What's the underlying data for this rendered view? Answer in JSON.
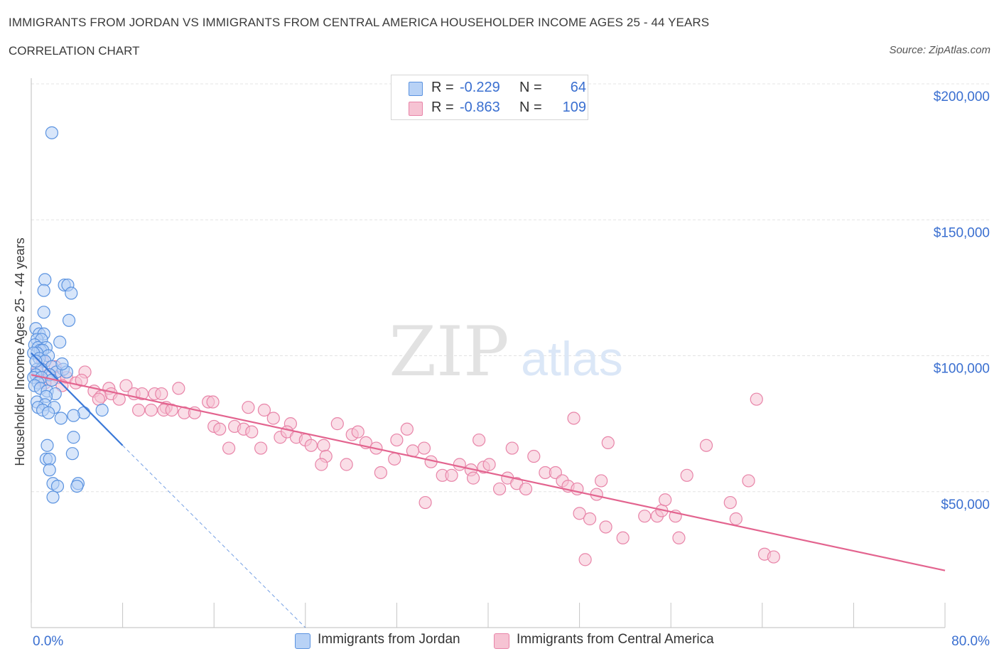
{
  "title": "IMMIGRANTS FROM JORDAN VS IMMIGRANTS FROM CENTRAL AMERICA HOUSEHOLDER INCOME AGES 25 - 44 YEARS",
  "subtitle": "CORRELATION CHART",
  "source": "Source: ZipAtlas.com",
  "watermark": {
    "zip": "ZIP",
    "atlas": "atlas"
  },
  "colors": {
    "jordan": "#5b93e0",
    "jordan_fill": "#b8d2f6",
    "jordan_line": "#3a78d8",
    "central": "#e884a8",
    "central_fill": "#f6c3d3",
    "central_line": "#e3648f",
    "axis_label": "#3a6fd0",
    "grid": "#e3e3e3"
  },
  "legend": {
    "rows": [
      {
        "r_label": "R =",
        "r_value": "-0.229",
        "n_label": "N =",
        "n_value": "64"
      },
      {
        "r_label": "R =",
        "r_value": "-0.863",
        "n_label": "N =",
        "n_value": "109"
      }
    ]
  },
  "chart_data": {
    "type": "scatter",
    "title": "IMMIGRANTS FROM JORDAN VS IMMIGRANTS FROM CENTRAL AMERICA HOUSEHOLDER INCOME AGES 25 - 44 YEARS",
    "xlabel": "",
    "ylabel": "Householder Income Ages 25 - 44 years",
    "xlim": [
      0,
      80
    ],
    "ylim": [
      0,
      200000
    ],
    "x_tick_labels": [
      "0.0%",
      "80.0%"
    ],
    "y_ticks": [
      50000,
      100000,
      150000,
      200000
    ],
    "y_tick_labels": [
      "$50,000",
      "$100,000",
      "$150,000",
      "$200,000"
    ],
    "series": [
      {
        "name": "Immigrants from Jordan",
        "r": -0.229,
        "n": 64,
        "trend": {
          "x0": 0,
          "y0": 101000,
          "x1": 8,
          "y1": 67000,
          "dashed_to_x": 24,
          "dashed_to_y": 0
        },
        "points": [
          [
            1.8,
            182000
          ],
          [
            2.9,
            126000
          ],
          [
            3.2,
            126000
          ],
          [
            1.2,
            128000
          ],
          [
            3.5,
            123000
          ],
          [
            1.1,
            124000
          ],
          [
            1.1,
            116000
          ],
          [
            3.3,
            113000
          ],
          [
            0.4,
            110000
          ],
          [
            0.7,
            108000
          ],
          [
            1.1,
            108000
          ],
          [
            0.5,
            106000
          ],
          [
            0.9,
            106000
          ],
          [
            2.5,
            105000
          ],
          [
            0.3,
            104000
          ],
          [
            0.6,
            103000
          ],
          [
            1.3,
            103000
          ],
          [
            0.8,
            102000
          ],
          [
            1.0,
            102000
          ],
          [
            0.5,
            101000
          ],
          [
            1.5,
            100000
          ],
          [
            0.2,
            101000
          ],
          [
            0.7,
            99000
          ],
          [
            1.2,
            98000
          ],
          [
            1.8,
            96000
          ],
          [
            2.8,
            95000
          ],
          [
            0.5,
            95000
          ],
          [
            0.9,
            95000
          ],
          [
            2.2,
            94000
          ],
          [
            3.1,
            94000
          ],
          [
            1.6,
            93000
          ],
          [
            0.4,
            93000
          ],
          [
            0.2,
            92000
          ],
          [
            0.9,
            92000
          ],
          [
            1.8,
            91000
          ],
          [
            0.6,
            90000
          ],
          [
            0.3,
            89000
          ],
          [
            0.8,
            88000
          ],
          [
            1.4,
            87000
          ],
          [
            2.1,
            86000
          ],
          [
            1.3,
            85000
          ],
          [
            0.5,
            83000
          ],
          [
            1.2,
            82000
          ],
          [
            2.0,
            81000
          ],
          [
            0.6,
            81000
          ],
          [
            1.0,
            80000
          ],
          [
            6.2,
            80000
          ],
          [
            4.6,
            79000
          ],
          [
            1.5,
            79000
          ],
          [
            3.7,
            78000
          ],
          [
            2.6,
            77000
          ],
          [
            3.7,
            70000
          ],
          [
            1.4,
            67000
          ],
          [
            3.6,
            64000
          ],
          [
            1.3,
            62000
          ],
          [
            1.6,
            62000
          ],
          [
            1.6,
            58000
          ],
          [
            4.1,
            53000
          ],
          [
            4.0,
            52000
          ],
          [
            1.9,
            53000
          ],
          [
            2.3,
            52000
          ],
          [
            1.9,
            48000
          ],
          [
            0.4,
            98000
          ],
          [
            2.7,
            97000
          ]
        ]
      },
      {
        "name": "Immigrants from Central America",
        "r": -0.863,
        "n": 109,
        "trend": {
          "x0": 0,
          "y0": 93000,
          "x1": 80,
          "y1": 21000
        },
        "points": [
          [
            1.0,
            98000
          ],
          [
            2.1,
            96000
          ],
          [
            0.5,
            94000
          ],
          [
            1.5,
            93000
          ],
          [
            2.4,
            92000
          ],
          [
            3.1,
            92000
          ],
          [
            4.7,
            94000
          ],
          [
            0.9,
            91000
          ],
          [
            1.8,
            91000
          ],
          [
            3.9,
            90000
          ],
          [
            2.7,
            89000
          ],
          [
            4.4,
            91000
          ],
          [
            1.2,
            90000
          ],
          [
            5.5,
            87000
          ],
          [
            6.8,
            88000
          ],
          [
            8.3,
            89000
          ],
          [
            9.0,
            86000
          ],
          [
            9.7,
            86000
          ],
          [
            10.8,
            86000
          ],
          [
            11.4,
            86000
          ],
          [
            12.9,
            88000
          ],
          [
            6.1,
            85000
          ],
          [
            7.0,
            86000
          ],
          [
            7.7,
            84000
          ],
          [
            5.9,
            84000
          ],
          [
            9.4,
            80000
          ],
          [
            10.5,
            80000
          ],
          [
            11.8,
            81000
          ],
          [
            13.4,
            79000
          ],
          [
            14.3,
            79000
          ],
          [
            15.5,
            83000
          ],
          [
            15.9,
            83000
          ],
          [
            11.6,
            80000
          ],
          [
            12.3,
            80000
          ],
          [
            19.0,
            81000
          ],
          [
            20.4,
            80000
          ],
          [
            21.2,
            77000
          ],
          [
            22.7,
            75000
          ],
          [
            16.0,
            74000
          ],
          [
            16.5,
            73000
          ],
          [
            17.8,
            74000
          ],
          [
            18.6,
            73000
          ],
          [
            19.3,
            72000
          ],
          [
            21.8,
            70000
          ],
          [
            22.4,
            72000
          ],
          [
            23.2,
            70000
          ],
          [
            24.0,
            69000
          ],
          [
            24.5,
            67000
          ],
          [
            25.6,
            67000
          ],
          [
            26.8,
            75000
          ],
          [
            28.1,
            71000
          ],
          [
            28.6,
            72000
          ],
          [
            29.3,
            68000
          ],
          [
            30.2,
            66000
          ],
          [
            32.0,
            69000
          ],
          [
            32.9,
            73000
          ],
          [
            34.4,
            66000
          ],
          [
            17.3,
            66000
          ],
          [
            20.1,
            66000
          ],
          [
            25.8,
            63000
          ],
          [
            27.6,
            60000
          ],
          [
            25.4,
            60000
          ],
          [
            31.8,
            62000
          ],
          [
            30.6,
            57000
          ],
          [
            33.4,
            65000
          ],
          [
            35.0,
            61000
          ],
          [
            36.0,
            56000
          ],
          [
            36.8,
            56000
          ],
          [
            37.5,
            60000
          ],
          [
            38.5,
            58000
          ],
          [
            38.7,
            55000
          ],
          [
            39.2,
            69000
          ],
          [
            39.6,
            59000
          ],
          [
            40.1,
            60000
          ],
          [
            41.0,
            51000
          ],
          [
            41.7,
            55000
          ],
          [
            42.5,
            53000
          ],
          [
            43.3,
            51000
          ],
          [
            44.0,
            63000
          ],
          [
            42.1,
            66000
          ],
          [
            45.0,
            57000
          ],
          [
            45.9,
            57000
          ],
          [
            46.5,
            54000
          ],
          [
            47.0,
            52000
          ],
          [
            47.5,
            77000
          ],
          [
            47.8,
            51000
          ],
          [
            49.5,
            49000
          ],
          [
            49.9,
            54000
          ],
          [
            50.5,
            68000
          ],
          [
            48.0,
            42000
          ],
          [
            48.9,
            40000
          ],
          [
            50.3,
            37000
          ],
          [
            53.7,
            41000
          ],
          [
            54.8,
            41000
          ],
          [
            55.2,
            43000
          ],
          [
            55.5,
            47000
          ],
          [
            56.4,
            41000
          ],
          [
            56.7,
            33000
          ],
          [
            51.8,
            33000
          ],
          [
            48.5,
            25000
          ],
          [
            57.4,
            56000
          ],
          [
            59.1,
            67000
          ],
          [
            61.2,
            46000
          ],
          [
            61.7,
            40000
          ],
          [
            62.8,
            54000
          ],
          [
            63.5,
            84000
          ],
          [
            64.2,
            27000
          ],
          [
            65.0,
            26000
          ],
          [
            34.5,
            46000
          ]
        ]
      }
    ]
  },
  "bottom_legend": [
    "Immigrants from Jordan",
    "Immigrants from Central America"
  ]
}
